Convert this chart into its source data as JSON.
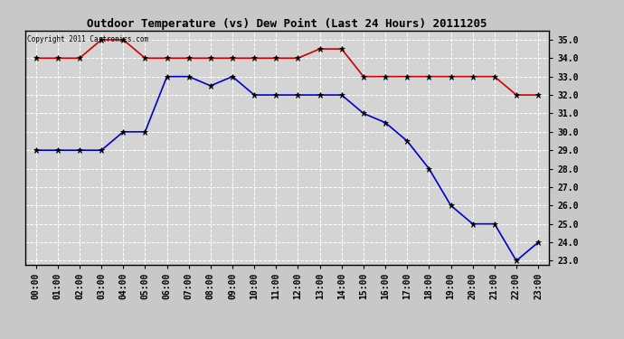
{
  "title": "Outdoor Temperature (vs) Dew Point (Last 24 Hours) 20111205",
  "copyright_text": "Copyright 2011 Cartronics.com",
  "x_labels": [
    "00:00",
    "01:00",
    "02:00",
    "03:00",
    "04:00",
    "05:00",
    "06:00",
    "07:00",
    "08:00",
    "09:00",
    "10:00",
    "11:00",
    "12:00",
    "13:00",
    "14:00",
    "15:00",
    "16:00",
    "17:00",
    "18:00",
    "19:00",
    "20:00",
    "21:00",
    "22:00",
    "23:00"
  ],
  "temp_data": [
    34.0,
    34.0,
    34.0,
    35.0,
    35.0,
    34.0,
    34.0,
    34.0,
    34.0,
    34.0,
    34.0,
    34.0,
    34.0,
    34.5,
    34.5,
    33.0,
    33.0,
    33.0,
    33.0,
    33.0,
    33.0,
    33.0,
    32.0,
    32.0
  ],
  "dew_data": [
    29.0,
    29.0,
    29.0,
    29.0,
    30.0,
    30.0,
    33.0,
    33.0,
    32.5,
    33.0,
    32.0,
    32.0,
    32.0,
    32.0,
    32.0,
    31.0,
    30.5,
    29.5,
    28.0,
    26.0,
    25.0,
    25.0,
    23.0,
    24.0
  ],
  "temp_color": "#cc0000",
  "dew_color": "#0000cc",
  "bg_color": "#c8c8c8",
  "plot_bg_color": "#d4d4d4",
  "ylim_min": 22.8,
  "ylim_max": 35.5,
  "ytick_min": 23.0,
  "ytick_max": 35.0,
  "ytick_step": 1.0,
  "title_fontsize": 9,
  "tick_fontsize": 7
}
